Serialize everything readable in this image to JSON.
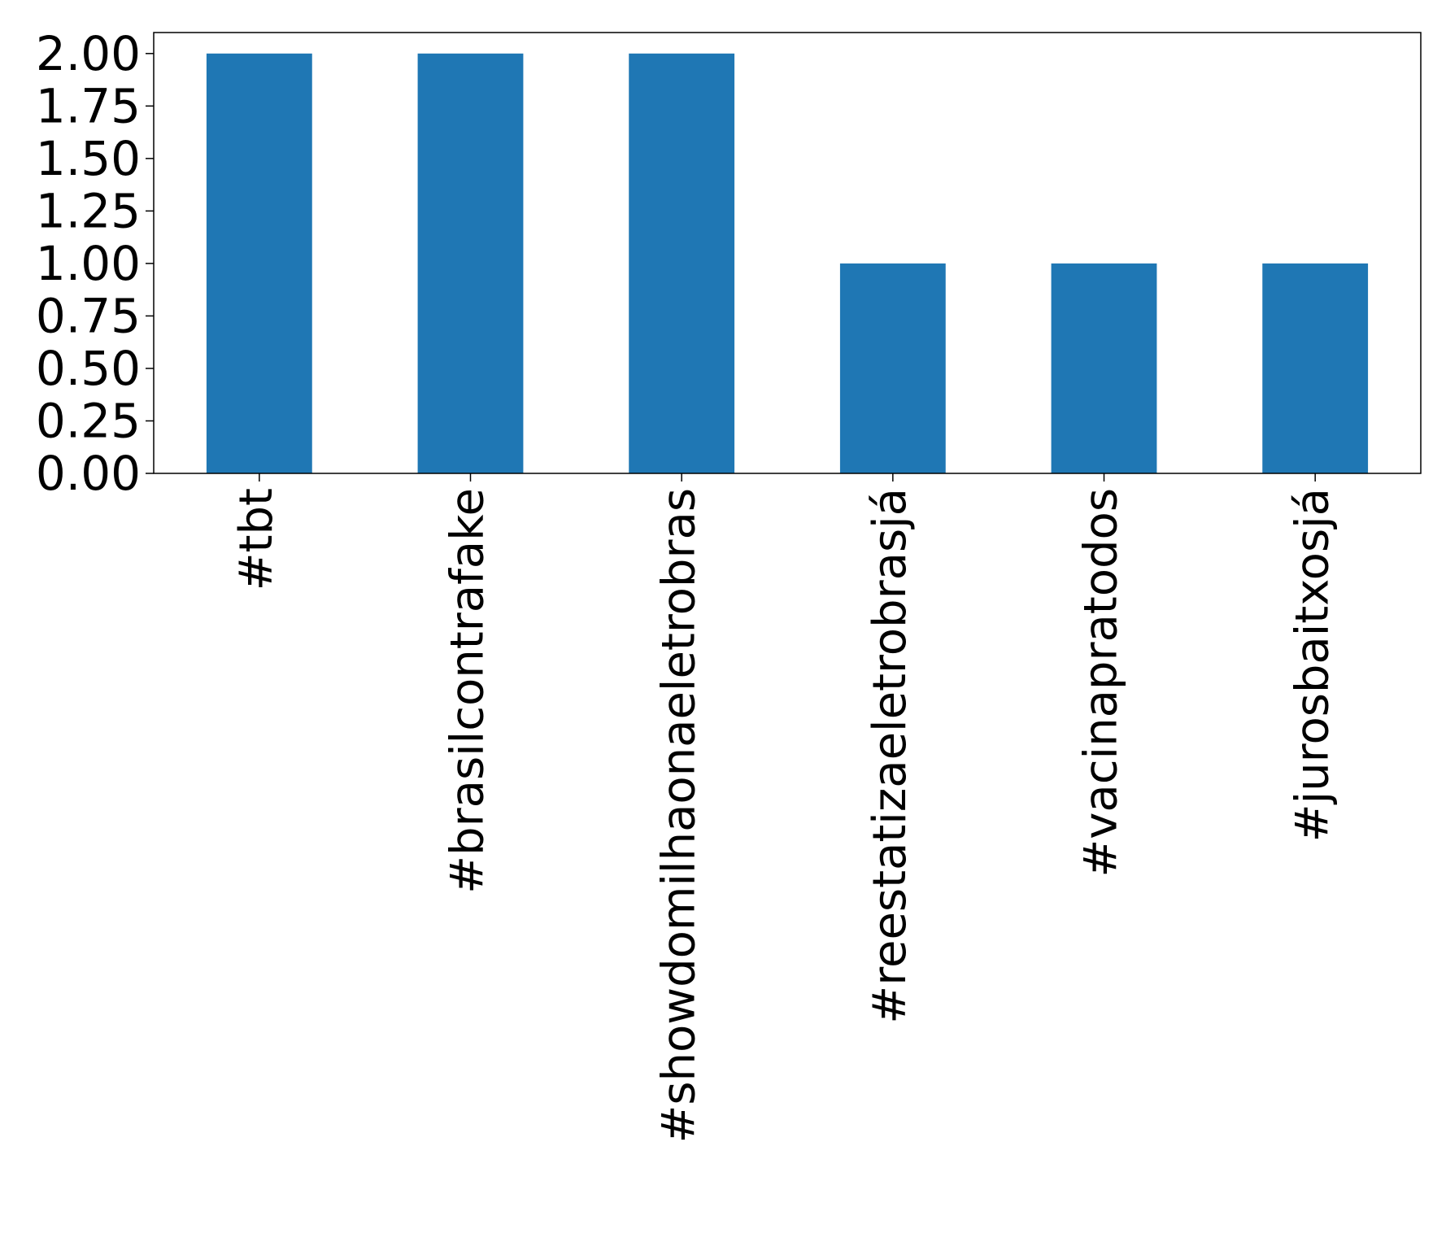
{
  "chart_data": {
    "type": "bar",
    "title": "",
    "xlabel": "",
    "ylabel": "",
    "categories": [
      "#tbt",
      "#brasilcontrafake",
      "#showdomilhaonaeletrobras",
      "#reestatizaeletrobrasjá",
      "#vacinapratodos",
      "#jurosbaitxosjá"
    ],
    "values": [
      2,
      2,
      2,
      1,
      1,
      1
    ],
    "ylim": [
      0,
      2.1
    ],
    "yticks": [
      "0.00",
      "0.25",
      "0.50",
      "0.75",
      "1.00",
      "1.25",
      "1.50",
      "1.75",
      "2.00"
    ],
    "grid": false,
    "legend": "none",
    "bar_color": "#1f77b4"
  }
}
